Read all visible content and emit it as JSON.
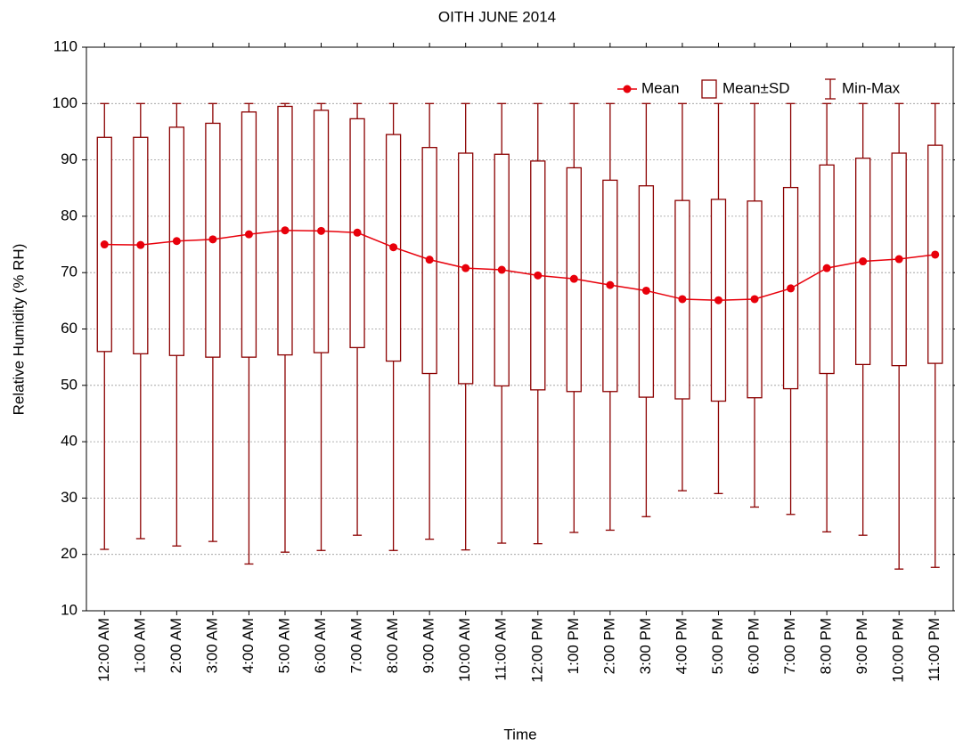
{
  "chart_data": {
    "type": "box",
    "title": "OITH JUNE 2014",
    "x_label": "Time",
    "y_label": "Relative Humidity (% RH)",
    "categories": [
      "12:00 AM",
      "1:00 AM",
      "2:00 AM",
      "3:00 AM",
      "4:00 AM",
      "5:00 AM",
      "6:00 AM",
      "7:00 AM",
      "8:00 AM",
      "9:00 AM",
      "10:00 AM",
      "11:00 AM",
      "12:00 PM",
      "1:00 PM",
      "2:00 PM",
      "3:00 PM",
      "4:00 PM",
      "5:00 PM",
      "6:00 PM",
      "7:00 PM",
      "8:00 PM",
      "9:00 PM",
      "10:00 PM",
      "11:00 PM"
    ],
    "series": [
      {
        "name": "Mean",
        "color": "#e8000b",
        "values": [
          75.0,
          74.9,
          75.6,
          75.9,
          76.8,
          77.5,
          77.4,
          77.1,
          74.5,
          72.3,
          70.8,
          70.5,
          69.5,
          68.9,
          67.8,
          66.8,
          65.3,
          65.1,
          65.3,
          67.2,
          70.8,
          72.0,
          72.4,
          73.2
        ]
      },
      {
        "name": "Mean±SD",
        "color": "#8b0000",
        "low": [
          56.0,
          55.6,
          55.3,
          55.0,
          55.0,
          55.4,
          55.8,
          56.7,
          54.3,
          52.1,
          50.3,
          49.9,
          49.2,
          48.9,
          48.9,
          47.9,
          47.6,
          47.2,
          47.8,
          49.4,
          52.1,
          53.7,
          53.5,
          53.9
        ],
        "high": [
          94.0,
          94.0,
          95.8,
          96.5,
          98.5,
          99.5,
          98.8,
          97.3,
          94.5,
          92.2,
          91.2,
          91.0,
          89.8,
          88.6,
          86.4,
          85.4,
          82.8,
          83.0,
          82.7,
          85.1,
          89.1,
          90.3,
          91.2,
          92.6
        ]
      },
      {
        "name": "Min-Max",
        "color": "#8b0000",
        "low": [
          20.9,
          22.8,
          21.5,
          22.3,
          18.3,
          20.4,
          20.7,
          23.4,
          20.7,
          22.7,
          20.8,
          22.0,
          21.9,
          23.9,
          24.3,
          26.7,
          31.3,
          30.8,
          28.4,
          27.1,
          24.0,
          23.4,
          17.4,
          17.7
        ],
        "high": [
          100,
          100,
          100,
          100,
          100,
          100,
          100,
          100,
          100,
          100,
          100,
          100,
          100,
          100,
          100,
          100,
          100,
          100,
          100,
          100,
          100,
          100,
          100,
          100
        ]
      }
    ],
    "ylim": [
      10,
      110
    ],
    "yticks": [
      10,
      20,
      30,
      40,
      50,
      60,
      70,
      80,
      90,
      100,
      110
    ],
    "grid": true,
    "legend": "upper right"
  }
}
